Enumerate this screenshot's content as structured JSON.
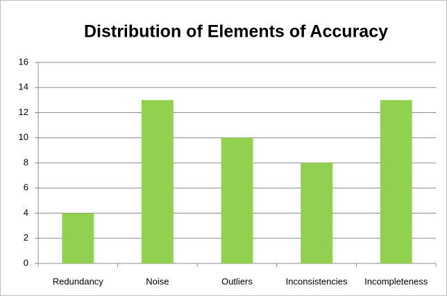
{
  "chart_data": {
    "type": "bar",
    "title": "Distribution of Elements of Accuracy",
    "categories": [
      "Redundancy",
      "Noise",
      "Outliers",
      "Inconsistencies",
      "Incompleteness"
    ],
    "values": [
      4,
      13,
      10,
      8,
      13
    ],
    "color": "#92d050",
    "ylim": [
      0,
      16
    ],
    "yticks": [
      0,
      2,
      4,
      6,
      8,
      10,
      12,
      14,
      16
    ],
    "grid": true
  }
}
